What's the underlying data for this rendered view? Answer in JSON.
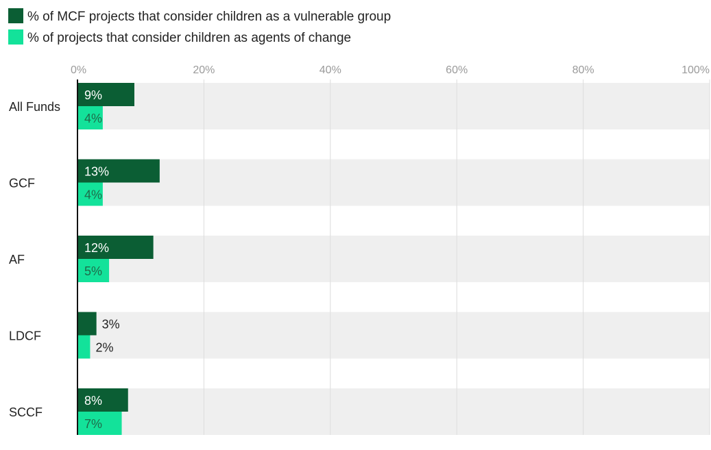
{
  "chart_data": {
    "type": "bar",
    "orientation": "horizontal",
    "categories": [
      "All Funds",
      "GCF",
      "AF",
      "LDCF",
      "SCCF"
    ],
    "series": [
      {
        "name": "% of MCF projects that consider children as a vulnerable group",
        "values": [
          9,
          13,
          12,
          3,
          8
        ],
        "labels": [
          "9%",
          "13%",
          "12%",
          "3%",
          "8%"
        ],
        "color": "#0b5e34"
      },
      {
        "name": "% of projects that consider children as agents of change",
        "values": [
          4,
          4,
          5,
          2,
          7
        ],
        "labels": [
          "4%",
          "4%",
          "5%",
          "2%",
          "7%"
        ],
        "color": "#13e29a"
      }
    ],
    "xlim": [
      0,
      100
    ],
    "xticks": [
      "0%",
      "20%",
      "40%",
      "60%",
      "80%",
      "100%"
    ],
    "tick_values": [
      0,
      20,
      40,
      60,
      80,
      100
    ],
    "grid": true,
    "legend_position": "top-left",
    "row_background": "#efefef",
    "grid_color": "#dcdcdc"
  }
}
